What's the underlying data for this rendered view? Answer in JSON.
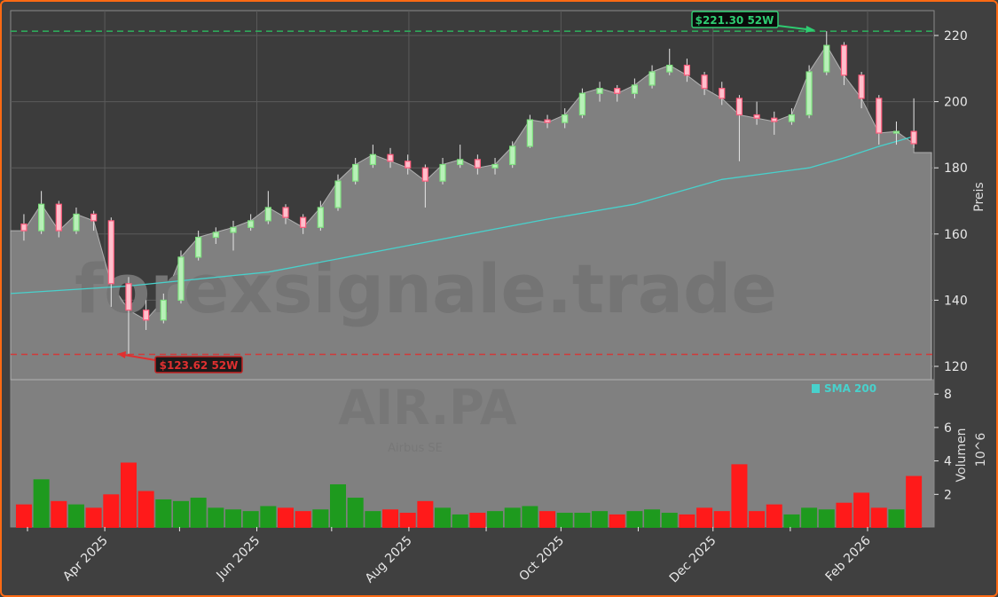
{
  "chart_data": {
    "type": "candlestick",
    "ticker_watermark": "AIR.PA",
    "company_watermark": "Airbus SE",
    "site_watermark": "forexsignale.trade",
    "price_axis": {
      "label": "Preis",
      "ticks": [
        120,
        140,
        160,
        180,
        200,
        220
      ],
      "ylim": [
        115,
        227
      ]
    },
    "volume_axis": {
      "label": "Volumen",
      "unit_label": "10^6",
      "ticks": [
        2,
        4,
        6,
        8
      ],
      "ylim": [
        0,
        8.8
      ]
    },
    "x_tick_labels": [
      {
        "date": "2025-04-01",
        "label": "Apr 2025"
      },
      {
        "date": "2025-06-01",
        "label": "Jun 2025"
      },
      {
        "date": "2025-08-01",
        "label": "Aug 2025"
      },
      {
        "date": "2025-10-01",
        "label": "Oct 2025"
      },
      {
        "date": "2025-12-01",
        "label": "Dec 2025"
      },
      {
        "date": "2026-02-01",
        "label": "Feb 2026"
      }
    ],
    "minor_ticks": [
      "2025-03-01",
      "2025-05-01",
      "2025-07-01",
      "2025-09-01",
      "2025-11-01",
      "2026-01-01"
    ],
    "legend": {
      "label": "SMA 200",
      "color": "#48d1cc",
      "placement": "top-right of volume panel"
    },
    "annotations": {
      "high": {
        "label": "$221.30 52W",
        "value": 221.3,
        "date": "2026-01-13",
        "color": "#2ecc71"
      },
      "low": {
        "label": "$123.62 52W",
        "value": 123.62,
        "date": "2025-04-07",
        "color": "#e03030"
      }
    },
    "extension_price": 184.6,
    "colors": {
      "up": "#7fe07f",
      "down": "#ff5c7c",
      "vol_up": "#1e9a1e",
      "vol_down": "#ff1a1a",
      "area": "#808080",
      "sma": "#48d1cc"
    },
    "columns": [
      "date",
      "open",
      "high",
      "low",
      "close",
      "volume_millions"
    ],
    "ohlcv": [
      [
        "2025-02-24",
        163,
        166,
        158,
        161,
        1.4
      ],
      [
        "2025-03-03",
        161,
        173,
        160,
        169,
        2.9
      ],
      [
        "2025-03-10",
        169,
        170,
        159,
        161,
        1.6
      ],
      [
        "2025-03-17",
        161,
        168,
        160,
        166,
        1.4
      ],
      [
        "2025-03-24",
        166,
        167,
        161,
        164,
        1.2
      ],
      [
        "2025-03-31",
        164,
        165,
        138,
        145,
        2.0
      ],
      [
        "2025-04-07",
        145,
        147,
        123.62,
        137,
        3.9
      ],
      [
        "2025-04-14",
        137,
        140,
        131,
        134,
        2.2
      ],
      [
        "2025-04-21",
        134,
        142,
        133,
        140,
        1.7
      ],
      [
        "2025-04-28",
        140,
        155,
        139,
        153,
        1.6
      ],
      [
        "2025-05-05",
        153,
        161,
        152,
        159,
        1.8
      ],
      [
        "2025-05-12",
        159,
        162,
        157,
        160.5,
        1.2
      ],
      [
        "2025-05-19",
        160.5,
        164,
        155,
        162,
        1.1
      ],
      [
        "2025-05-26",
        162,
        166,
        161,
        164,
        1.0
      ],
      [
        "2025-06-02",
        164,
        173,
        163,
        168,
        1.3
      ],
      [
        "2025-06-09",
        168,
        169,
        163,
        165,
        1.2
      ],
      [
        "2025-06-16",
        165,
        166,
        160,
        162,
        1.0
      ],
      [
        "2025-06-23",
        162,
        170,
        161,
        168,
        1.1
      ],
      [
        "2025-06-30",
        168,
        178,
        167,
        176,
        2.6
      ],
      [
        "2025-07-07",
        176,
        183,
        175,
        181,
        1.8
      ],
      [
        "2025-07-14",
        181,
        187,
        180,
        184,
        1.0
      ],
      [
        "2025-07-21",
        184,
        186,
        180,
        182,
        1.1
      ],
      [
        "2025-07-28",
        182,
        184,
        178,
        180,
        0.9
      ],
      [
        "2025-08-04",
        180,
        181,
        168,
        176,
        1.6
      ],
      [
        "2025-08-11",
        176,
        183,
        175,
        181,
        1.2
      ],
      [
        "2025-08-18",
        181,
        187,
        180,
        182.5,
        0.8
      ],
      [
        "2025-08-25",
        182.5,
        184,
        178,
        180,
        0.9
      ],
      [
        "2025-09-01",
        180,
        183,
        178,
        181,
        1.0
      ],
      [
        "2025-09-08",
        181,
        188,
        180,
        186.5,
        1.2
      ],
      [
        "2025-09-15",
        186.5,
        196,
        186,
        194.5,
        1.3
      ],
      [
        "2025-09-22",
        194.5,
        196,
        192,
        193.7,
        1.0
      ],
      [
        "2025-09-29",
        193.7,
        198,
        192,
        196,
        0.9
      ],
      [
        "2025-10-06",
        196,
        204,
        195,
        202.5,
        0.9
      ],
      [
        "2025-10-13",
        202.5,
        206,
        200,
        204,
        1.0
      ],
      [
        "2025-10-20",
        204,
        205,
        200,
        202.5,
        0.8
      ],
      [
        "2025-10-27",
        202.5,
        207,
        201,
        205,
        1.0
      ],
      [
        "2025-11-03",
        205,
        211,
        204,
        209,
        1.1
      ],
      [
        "2025-11-10",
        209,
        216,
        208,
        211,
        0.9
      ],
      [
        "2025-11-17",
        211,
        213,
        206,
        208,
        0.8
      ],
      [
        "2025-11-24",
        208,
        209,
        202,
        204,
        1.2
      ],
      [
        "2025-12-01",
        204,
        206,
        199,
        201,
        1.0
      ],
      [
        "2025-12-08",
        201,
        202,
        182,
        196,
        3.8
      ],
      [
        "2025-12-15",
        196,
        200,
        193,
        195,
        1.0
      ],
      [
        "2025-12-22",
        195,
        197,
        190,
        194,
        1.4
      ],
      [
        "2025-12-29",
        194,
        198,
        193,
        196,
        0.8
      ],
      [
        "2026-01-05",
        196,
        211,
        195,
        209,
        1.2
      ],
      [
        "2026-01-12",
        209,
        221.3,
        208,
        217,
        1.1
      ],
      [
        "2026-01-19",
        217,
        218,
        205,
        208,
        1.5
      ],
      [
        "2026-01-26",
        208,
        209,
        198,
        201,
        2.1
      ],
      [
        "2026-02-02",
        201,
        202,
        187,
        190.5,
        1.2
      ],
      [
        "2026-02-09",
        190.5,
        194,
        187,
        191,
        1.1
      ],
      [
        "2026-02-16",
        191,
        201,
        186,
        187.3,
        3.1
      ]
    ],
    "sma200": [
      [
        "2025-02-24",
        142
      ],
      [
        "2025-04-07",
        144.3
      ],
      [
        "2025-06-02",
        148.5
      ],
      [
        "2025-07-28",
        156.5
      ],
      [
        "2025-09-22",
        164.5
      ],
      [
        "2025-10-27",
        169
      ],
      [
        "2025-12-01",
        176.5
      ],
      [
        "2026-01-05",
        180
      ],
      [
        "2026-01-19",
        183
      ],
      [
        "2026-02-02",
        186.5
      ],
      [
        "2026-02-16",
        189.5
      ]
    ]
  }
}
